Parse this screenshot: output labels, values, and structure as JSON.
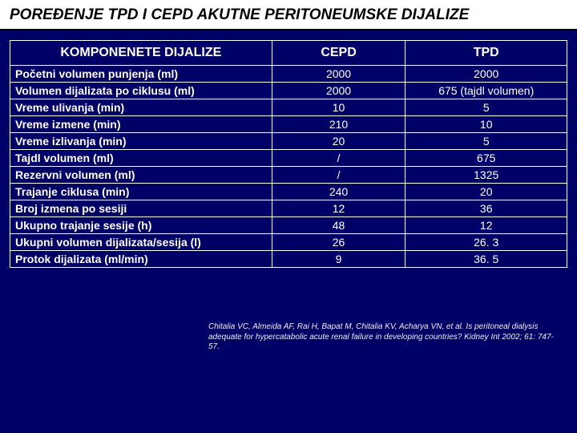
{
  "title": "POREĐENJE TPD I CEPD AKUTNE PERITONEUMSKE DIJALIZE",
  "title_fontsize": 19,
  "table": {
    "header_fontsize": 16,
    "cell_fontsize": 14,
    "border_color": "#ffffff",
    "text_color": "#ffffff",
    "background_color": "#000066",
    "columns": [
      "KOMPONENETE DIJALIZE",
      "CEPD",
      "TPD"
    ],
    "col_widths": [
      "47%",
      "24%",
      "29%"
    ],
    "rows": [
      [
        "Početni volumen punjenja (ml)",
        "2000",
        "2000"
      ],
      [
        "Volumen dijalizata po ciklusu (ml)",
        "2000",
        "675 (tajdl volumen)"
      ],
      [
        "Vreme ulivanja (min)",
        "10",
        "5"
      ],
      [
        "Vreme izmene (min)",
        "210",
        "10"
      ],
      [
        "Vreme izlivanja (min)",
        "20",
        "5"
      ],
      [
        "Tajdl volumen (ml)",
        "/",
        "675"
      ],
      [
        "Rezervni volumen (ml)",
        "/",
        "1325"
      ],
      [
        "Trajanje ciklusa (min)",
        "240",
        "20"
      ],
      [
        "Broj izmena po sesiji",
        "12",
        "36"
      ],
      [
        "Ukupno trajanje sesije (h)",
        "48",
        "12"
      ],
      [
        "Ukupni volumen dijalizata/sesija (l)",
        "26",
        "26. 3"
      ],
      [
        "Protok dijalizata (ml/min)",
        "9",
        "36. 5"
      ]
    ]
  },
  "citation": {
    "text": "Chitalia VC, Almeida AF, Rai H, Bapat M, Chitalia KV, Acharya VN, et al. Is peritoneal dialysis adequate for hypercatabolic acute renal failure in developing countries? Kidney Int 2002; 61: 747-57.",
    "fontsize": 10,
    "color": "#eeeeee"
  },
  "colors": {
    "slide_bg": "#000066",
    "title_bg": "#ffffff",
    "title_text": "#000000",
    "title_underline": "#000000"
  }
}
